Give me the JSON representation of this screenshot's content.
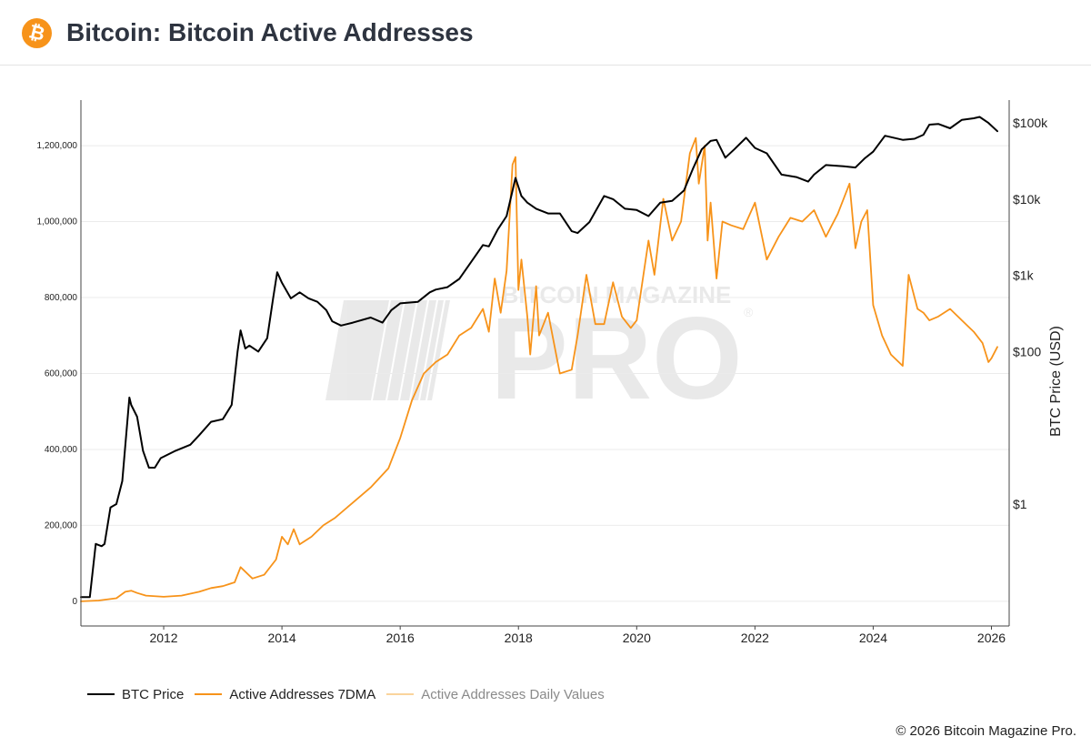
{
  "header": {
    "logo_glyph": "₿",
    "title": "Bitcoin: Bitcoin Active Addresses"
  },
  "watermark": {
    "top": "BITCOIN MAGAZINE",
    "main": "PRO",
    "reg": "®"
  },
  "chart_data": {
    "type": "line",
    "title": "Bitcoin: Bitcoin Active Addresses",
    "x_range": [
      2010.6,
      2026.3
    ],
    "x_ticks": [
      {
        "v": 2012,
        "label": "2012"
      },
      {
        "v": 2014,
        "label": "2014"
      },
      {
        "v": 2016,
        "label": "2016"
      },
      {
        "v": 2018,
        "label": "2018"
      },
      {
        "v": 2020,
        "label": "2020"
      },
      {
        "v": 2022,
        "label": "2022"
      },
      {
        "v": 2024,
        "label": "2024"
      },
      {
        "v": 2026,
        "label": "2026"
      }
    ],
    "y_left": {
      "range": [
        -65000,
        1320000
      ],
      "ticks": [
        {
          "v": 0,
          "label": "0"
        },
        {
          "v": 200000,
          "label": "200,000"
        },
        {
          "v": 400000,
          "label": "400,000"
        },
        {
          "v": 600000,
          "label": "600,000"
        },
        {
          "v": 800000,
          "label": "800,000"
        },
        {
          "v": 1000000,
          "label": "1,000,000"
        },
        {
          "v": 1200000,
          "label": "1,200,000"
        }
      ]
    },
    "y_right": {
      "label": "BTC Price (USD)",
      "scale": "log",
      "log_range": [
        -1.6,
        5.3
      ],
      "ticks": [
        {
          "v": 1,
          "label": "$1"
        },
        {
          "v": 100,
          "label": "$100"
        },
        {
          "v": 1000,
          "label": "$1k"
        },
        {
          "v": 10000,
          "label": "$10k"
        },
        {
          "v": 100000,
          "label": "$100k"
        }
      ]
    },
    "series": [
      {
        "name": "BTC Price",
        "axis": "right",
        "color": "#000000",
        "x": [
          2010.6,
          2010.75,
          2010.85,
          2010.95,
          2011.0,
          2011.1,
          2011.2,
          2011.3,
          2011.42,
          2011.45,
          2011.55,
          2011.65,
          2011.75,
          2011.85,
          2011.95,
          2012.2,
          2012.45,
          2012.6,
          2012.8,
          2013.0,
          2013.15,
          2013.25,
          2013.3,
          2013.38,
          2013.45,
          2013.6,
          2013.75,
          2013.85,
          2013.92,
          2014.0,
          2014.15,
          2014.3,
          2014.45,
          2014.6,
          2014.75,
          2014.85,
          2015.0,
          2015.2,
          2015.5,
          2015.7,
          2015.85,
          2016.0,
          2016.3,
          2016.5,
          2016.6,
          2016.8,
          2017.0,
          2017.2,
          2017.4,
          2017.5,
          2017.65,
          2017.8,
          2017.95,
          2018.05,
          2018.15,
          2018.3,
          2018.5,
          2018.7,
          2018.9,
          2019.0,
          2019.2,
          2019.45,
          2019.6,
          2019.8,
          2020.0,
          2020.2,
          2020.4,
          2020.6,
          2020.8,
          2020.95,
          2021.1,
          2021.25,
          2021.35,
          2021.5,
          2021.65,
          2021.85,
          2022.0,
          2022.2,
          2022.45,
          2022.7,
          2022.9,
          2023.0,
          2023.2,
          2023.5,
          2023.7,
          2023.85,
          2024.0,
          2024.2,
          2024.5,
          2024.7,
          2024.85,
          2024.95,
          2025.1,
          2025.3,
          2025.5,
          2025.7,
          2025.8,
          2025.95,
          2026.1
        ],
        "y": [
          0.06,
          0.06,
          0.3,
          0.28,
          0.3,
          0.9,
          1.0,
          2.0,
          25,
          20,
          14,
          5,
          3,
          3,
          4,
          5,
          6,
          8,
          12,
          13,
          20,
          100,
          190,
          110,
          120,
          100,
          150,
          500,
          1100,
          800,
          500,
          600,
          500,
          450,
          350,
          250,
          220,
          240,
          280,
          240,
          350,
          430,
          450,
          600,
          650,
          700,
          900,
          1500,
          2500,
          2400,
          4000,
          6000,
          19000,
          11000,
          9000,
          7500,
          6500,
          6500,
          3800,
          3600,
          5000,
          11000,
          10000,
          7500,
          7200,
          6000,
          9000,
          9500,
          13000,
          25000,
          45000,
          58000,
          60000,
          35000,
          45000,
          64000,
          47000,
          40000,
          21000,
          19500,
          17000,
          21000,
          28000,
          27000,
          26000,
          34000,
          42000,
          68000,
          60000,
          62000,
          70000,
          95000,
          97000,
          85000,
          110000,
          115000,
          120000,
          100000,
          78000
        ]
      },
      {
        "name": "Active Addresses 7DMA",
        "axis": "left",
        "color": "#f7931a",
        "x": [
          2010.6,
          2010.9,
          2011.2,
          2011.35,
          2011.45,
          2011.55,
          2011.7,
          2012.0,
          2012.3,
          2012.6,
          2012.8,
          2013.0,
          2013.2,
          2013.3,
          2013.5,
          2013.7,
          2013.9,
          2014.0,
          2014.1,
          2014.2,
          2014.3,
          2014.5,
          2014.7,
          2014.9,
          2015.2,
          2015.5,
          2015.8,
          2016.0,
          2016.2,
          2016.4,
          2016.6,
          2016.8,
          2017.0,
          2017.2,
          2017.4,
          2017.5,
          2017.6,
          2017.7,
          2017.8,
          2017.9,
          2017.95,
          2018.0,
          2018.05,
          2018.15,
          2018.2,
          2018.3,
          2018.35,
          2018.5,
          2018.7,
          2018.9,
          2019.0,
          2019.15,
          2019.3,
          2019.45,
          2019.6,
          2019.75,
          2019.9,
          2020.0,
          2020.2,
          2020.3,
          2020.45,
          2020.6,
          2020.75,
          2020.9,
          2021.0,
          2021.05,
          2021.15,
          2021.2,
          2021.25,
          2021.35,
          2021.45,
          2021.6,
          2021.8,
          2022.0,
          2022.2,
          2022.4,
          2022.6,
          2022.8,
          2023.0,
          2023.2,
          2023.4,
          2023.6,
          2023.7,
          2023.8,
          2023.9,
          2024.0,
          2024.15,
          2024.3,
          2024.5,
          2024.6,
          2024.75,
          2024.85,
          2024.95,
          2025.1,
          2025.3,
          2025.5,
          2025.7,
          2025.85,
          2025.95,
          2026.0,
          2026.1
        ],
        "y": [
          0,
          2000,
          8000,
          25000,
          28000,
          22000,
          15000,
          12000,
          15000,
          25000,
          35000,
          40000,
          50000,
          90000,
          60000,
          70000,
          110000,
          170000,
          150000,
          190000,
          150000,
          170000,
          200000,
          220000,
          260000,
          300000,
          350000,
          430000,
          530000,
          600000,
          630000,
          650000,
          700000,
          720000,
          770000,
          710000,
          850000,
          760000,
          870000,
          1150000,
          1170000,
          820000,
          900000,
          750000,
          650000,
          830000,
          700000,
          760000,
          600000,
          610000,
          700000,
          860000,
          730000,
          730000,
          840000,
          750000,
          720000,
          740000,
          950000,
          860000,
          1060000,
          950000,
          1000000,
          1180000,
          1220000,
          1100000,
          1200000,
          950000,
          1050000,
          850000,
          1000000,
          990000,
          980000,
          1050000,
          900000,
          960000,
          1010000,
          1000000,
          1030000,
          960000,
          1020000,
          1100000,
          930000,
          1000000,
          1030000,
          780000,
          700000,
          650000,
          620000,
          860000,
          770000,
          760000,
          740000,
          750000,
          770000,
          740000,
          710000,
          680000,
          630000,
          640000,
          670000
        ]
      }
    ]
  },
  "legend": [
    {
      "label": "BTC Price",
      "color": "#000000",
      "state": "active"
    },
    {
      "label": "Active Addresses 7DMA",
      "color": "#f7931a",
      "state": "active"
    },
    {
      "label": "Active Addresses Daily Values",
      "color": "#f7b75a",
      "state": "hidden"
    }
  ],
  "footer": {
    "copyright": "© 2026 Bitcoin Magazine Pro."
  }
}
